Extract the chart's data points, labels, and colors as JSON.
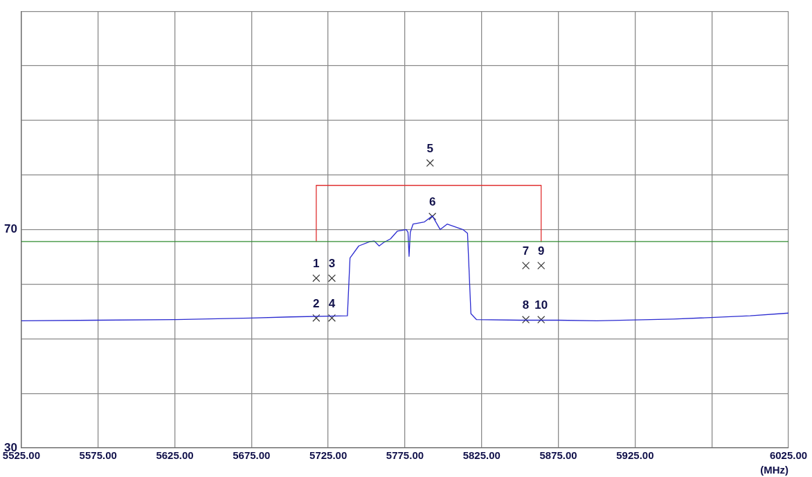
{
  "chart_data": {
    "type": "line",
    "xlabel": "(MHz)",
    "xlim": [
      5525,
      6025
    ],
    "xticks": [
      {
        "value": 5525,
        "label": "5525.00"
      },
      {
        "value": 5575,
        "label": "5575.00"
      },
      {
        "value": 5625,
        "label": "5625.00"
      },
      {
        "value": 5675,
        "label": "5675.00"
      },
      {
        "value": 5725,
        "label": "5725.00"
      },
      {
        "value": 5775,
        "label": "5775.00"
      },
      {
        "value": 5825,
        "label": "5825.00"
      },
      {
        "value": 5875,
        "label": "5875.00"
      },
      {
        "value": 5925,
        "label": "5925.00"
      },
      {
        "value": 5975,
        "label": null
      },
      {
        "value": 6025,
        "label": "6025.00"
      }
    ],
    "ylim": [
      30,
      110
    ],
    "yticks": [
      30,
      {
        "value": 40,
        "label": null
      },
      {
        "value": 50,
        "label": null
      },
      {
        "value": 60,
        "label": null
      },
      70,
      {
        "value": 80,
        "label": null
      },
      {
        "value": 90,
        "label": null
      },
      {
        "value": 100,
        "label": null
      },
      {
        "value": 110,
        "label": null
      }
    ],
    "grid": true,
    "series": [
      {
        "color": "#2b2bd0",
        "x": [
          5525,
          5575,
          5625,
          5675,
          5700.5,
          5737.5,
          5739.2,
          5744.9,
          5752.3,
          5755,
          5758.2,
          5761,
          5765.6,
          5770,
          5775.9,
          5777,
          5777.7,
          5778.5,
          5780.3,
          5787.7,
          5792.9,
          5798,
          5802.5,
          5812.8,
          5815.8,
          5818,
          5821.7,
          5850,
          5875,
          5900,
          5950,
          6000,
          6025
        ],
        "values": [
          53.3,
          53.4,
          53.5,
          53.8,
          54.0,
          54.2,
          64.8,
          67.0,
          67.8,
          67.9,
          67.0,
          67.6,
          68.3,
          69.7,
          70.0,
          69.5,
          65.1,
          69.5,
          71.0,
          71.4,
          72.5,
          70.0,
          71.0,
          70.0,
          69.3,
          54.6,
          53.5,
          53.4,
          53.4,
          53.3,
          53.6,
          54.2,
          54.7
        ]
      },
      {
        "color": "#e03030",
        "x": [
          5717.2,
          5717.2,
          5863.8,
          5863.8
        ],
        "values": [
          67.8,
          78.1,
          78.1,
          67.8
        ]
      },
      {
        "type": "scatter",
        "color": "#333333",
        "marker": "cross",
        "x": [
          5717.2,
          5717.2,
          5727.4,
          5727.4,
          5791.4,
          5792.9,
          5853.8,
          5853.8,
          5863.8,
          5863.8
        ],
        "values": [
          61.1,
          53.8,
          61.1,
          53.8,
          82.2,
          72.4,
          63.4,
          53.5,
          63.4,
          53.5
        ]
      }
    ],
    "ref_lines": [
      {
        "axis": "y",
        "value": 67.8,
        "color": "#2e8b2e"
      }
    ],
    "annotations": [
      {
        "text": "1",
        "x": 5717.2,
        "y": 61.1
      },
      {
        "text": "2",
        "x": 5717.2,
        "y": 53.8
      },
      {
        "text": "3",
        "x": 5727.4,
        "y": 61.1
      },
      {
        "text": "4",
        "x": 5727.4,
        "y": 53.8
      },
      {
        "text": "5",
        "x": 5791.4,
        "y": 82.2
      },
      {
        "text": "6",
        "x": 5792.9,
        "y": 72.4
      },
      {
        "text": "7",
        "x": 5853.8,
        "y": 63.4
      },
      {
        "text": "8",
        "x": 5853.8,
        "y": 53.5
      },
      {
        "text": "9",
        "x": 5863.8,
        "y": 63.4
      },
      {
        "text": "10",
        "x": 5863.8,
        "y": 53.5
      }
    ]
  }
}
